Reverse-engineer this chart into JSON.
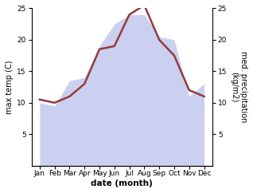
{
  "months": [
    "Jan",
    "Feb",
    "Mar",
    "Apr",
    "May",
    "Jun",
    "Jul",
    "Aug",
    "Sep",
    "Oct",
    "Nov",
    "Dec"
  ],
  "temp_line": [
    10.5,
    10.0,
    11.0,
    13.0,
    18.5,
    19.0,
    24.0,
    25.5,
    20.0,
    17.5,
    12.0,
    11.0
  ],
  "precip_area": [
    10.0,
    9.5,
    13.5,
    14.0,
    19.0,
    22.5,
    24.0,
    24.0,
    20.5,
    20.0,
    11.0,
    13.0
  ],
  "temp_color": "#943c3c",
  "precip_color": "#b0b8e8",
  "precip_fill_alpha": 0.65,
  "ylim": [
    0,
    25
  ],
  "yticks": [
    5,
    10,
    15,
    20,
    25
  ],
  "ylabel_left": "max temp (C)",
  "ylabel_right": "med. precipitation\n(kg/m2)",
  "xlabel": "date (month)",
  "background_color": "#ffffff",
  "title": "",
  "grid": false,
  "line_width": 1.8
}
